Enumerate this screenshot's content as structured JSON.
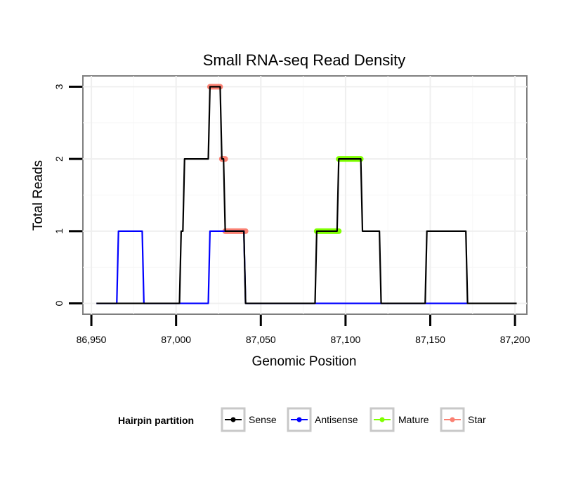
{
  "chart_data": {
    "type": "line",
    "title": "Small RNA-seq Read Density",
    "xlabel": "Genomic Position",
    "ylabel": "Total Reads",
    "xlim": [
      86945,
      87207
    ],
    "ylim": [
      -0.15,
      3.15
    ],
    "x_ticks": [
      86950,
      87000,
      87050,
      87100,
      87150,
      87200
    ],
    "x_tick_labels": [
      "86,950",
      "87,000",
      "87,050",
      "87,100",
      "87,150",
      "87,200"
    ],
    "y_ticks": [
      0,
      1,
      2,
      3
    ],
    "y_tick_labels": [
      "0",
      "1",
      "2",
      "3"
    ],
    "grid": true,
    "legend": {
      "title": "Hairpin partition",
      "position": "bottom",
      "entries": [
        "Sense",
        "Antisense",
        "Mature",
        "Star"
      ]
    },
    "series": [
      {
        "name": "Sense",
        "color": "#000000",
        "x": [
          86953,
          87002,
          87003,
          87004,
          87005,
          87019,
          87020,
          87026,
          87027,
          87028,
          87029,
          87030,
          87038,
          87040,
          87041,
          87082,
          87083,
          87095,
          87096,
          87109,
          87110,
          87120,
          87121,
          87147,
          87148,
          87171,
          87172,
          87201
        ],
        "y": [
          0,
          0,
          1,
          1,
          2,
          2,
          3,
          3,
          2,
          2,
          1,
          1,
          1,
          1,
          0,
          0,
          1,
          1,
          2,
          2,
          1,
          1,
          0,
          0,
          1,
          1,
          0,
          0
        ]
      },
      {
        "name": "Antisense",
        "color": "#0000ff",
        "x": [
          86953,
          86965,
          86966,
          86980,
          86981,
          87019,
          87020,
          87040,
          87041,
          87172
        ],
        "y": [
          0,
          0,
          1,
          1,
          0,
          0,
          1,
          1,
          0,
          0
        ]
      },
      {
        "name": "Mature",
        "color": "#7fff00",
        "segments": [
          {
            "x": [
              87083,
              87096
            ],
            "y": 1
          },
          {
            "x": [
              87096,
              87109
            ],
            "y": 2
          }
        ]
      },
      {
        "name": "Star",
        "color": "#fa8072",
        "segments": [
          {
            "x": [
              87020,
              87026
            ],
            "y": 3
          },
          {
            "x": [
              87027,
              87029
            ],
            "y": 2
          },
          {
            "x": [
              87029,
              87041
            ],
            "y": 1
          }
        ]
      }
    ]
  }
}
